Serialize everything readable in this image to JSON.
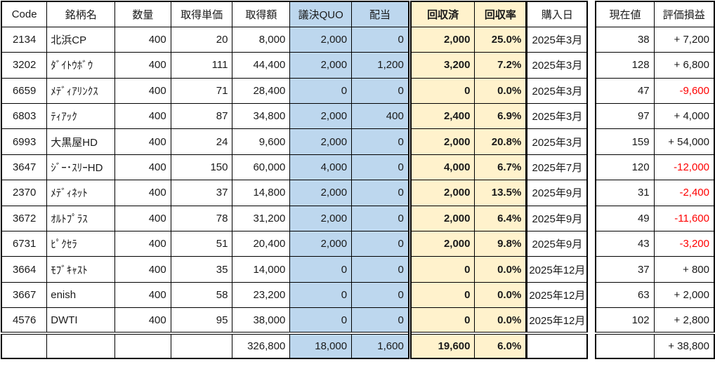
{
  "headers": {
    "code": "Code",
    "name": "銘柄名",
    "qty": "数量",
    "unit_price": "取得単価",
    "acq_amount": "取得額",
    "quo": "議決QUO",
    "dividend": "配当",
    "recovered": "回収済",
    "rate": "回収率",
    "purchase_date": "購入日",
    "current_price": "現在値",
    "pnl": "評価損益"
  },
  "rows": [
    {
      "code": "2134",
      "name": "北浜CP",
      "qty": "400",
      "unit_price": "20",
      "acq_amount": "8,000",
      "quo": "2,000",
      "dividend": "0",
      "recovered": "2,000",
      "rate": "25.0%",
      "purchase_date": "2025年3月",
      "current_price": "38",
      "pnl": "+ 7,200"
    },
    {
      "code": "3202",
      "name": "ﾀﾞｲﾄｳﾎﾞｳ",
      "qty": "400",
      "unit_price": "111",
      "acq_amount": "44,400",
      "quo": "2,000",
      "dividend": "1,200",
      "recovered": "3,200",
      "rate": "7.2%",
      "purchase_date": "2025年3月",
      "current_price": "128",
      "pnl": "+ 6,800"
    },
    {
      "code": "6659",
      "name": "ﾒﾃﾞｨｱﾘﾝｸｽ",
      "qty": "400",
      "unit_price": "71",
      "acq_amount": "28,400",
      "quo": "0",
      "dividend": "0",
      "recovered": "0",
      "rate": "0.0%",
      "purchase_date": "2025年3月",
      "current_price": "47",
      "pnl": "-9,600"
    },
    {
      "code": "6803",
      "name": "ﾃｨｱｯｸ",
      "qty": "400",
      "unit_price": "87",
      "acq_amount": "34,800",
      "quo": "2,000",
      "dividend": "400",
      "recovered": "2,400",
      "rate": "6.9%",
      "purchase_date": "2025年3月",
      "current_price": "97",
      "pnl": "+ 4,000"
    },
    {
      "code": "6993",
      "name": "大黒屋HD",
      "qty": "400",
      "unit_price": "24",
      "acq_amount": "9,600",
      "quo": "2,000",
      "dividend": "0",
      "recovered": "2,000",
      "rate": "20.8%",
      "purchase_date": "2025年3月",
      "current_price": "159",
      "pnl": "+ 54,000"
    },
    {
      "code": "3647",
      "name": "ｼﾞｰ･ｽﾘｰHD",
      "qty": "400",
      "unit_price": "150",
      "acq_amount": "60,000",
      "quo": "4,000",
      "dividend": "0",
      "recovered": "4,000",
      "rate": "6.7%",
      "purchase_date": "2025年7月",
      "current_price": "120",
      "pnl": "-12,000"
    },
    {
      "code": "2370",
      "name": "ﾒﾃﾞｨﾈｯﾄ",
      "qty": "400",
      "unit_price": "37",
      "acq_amount": "14,800",
      "quo": "2,000",
      "dividend": "0",
      "recovered": "2,000",
      "rate": "13.5%",
      "purchase_date": "2025年9月",
      "current_price": "31",
      "pnl": "-2,400"
    },
    {
      "code": "3672",
      "name": "ｵﾙﾄﾌﾟﾗｽ",
      "qty": "400",
      "unit_price": "78",
      "acq_amount": "31,200",
      "quo": "2,000",
      "dividend": "0",
      "recovered": "2,000",
      "rate": "6.4%",
      "purchase_date": "2025年9月",
      "current_price": "49",
      "pnl": "-11,600"
    },
    {
      "code": "6731",
      "name": "ﾋﾟｸｾﾗ",
      "qty": "400",
      "unit_price": "51",
      "acq_amount": "20,400",
      "quo": "2,000",
      "dividend": "0",
      "recovered": "2,000",
      "rate": "9.8%",
      "purchase_date": "2025年9月",
      "current_price": "43",
      "pnl": "-3,200"
    },
    {
      "code": "3664",
      "name": "ﾓﾌﾞｷｬｽﾄ",
      "qty": "400",
      "unit_price": "35",
      "acq_amount": "14,000",
      "quo": "0",
      "dividend": "0",
      "recovered": "0",
      "rate": "0.0%",
      "purchase_date": "2025年12月",
      "current_price": "37",
      "pnl": "+ 800"
    },
    {
      "code": "3667",
      "name": "enish",
      "qty": "400",
      "unit_price": "58",
      "acq_amount": "23,200",
      "quo": "0",
      "dividend": "0",
      "recovered": "0",
      "rate": "0.0%",
      "purchase_date": "2025年12月",
      "current_price": "63",
      "pnl": "+ 2,000"
    },
    {
      "code": "4576",
      "name": "DWTI",
      "qty": "400",
      "unit_price": "95",
      "acq_amount": "38,000",
      "quo": "0",
      "dividend": "0",
      "recovered": "0",
      "rate": "0.0%",
      "purchase_date": "2025年12月",
      "current_price": "102",
      "pnl": "+ 2,800"
    }
  ],
  "totals": {
    "acq_amount": "326,800",
    "quo": "18,000",
    "dividend": "1,600",
    "recovered": "19,600",
    "rate": "6.0%",
    "pnl": "+ 38,800"
  },
  "colors": {
    "highlight_blue": "#BDD7EE",
    "highlight_yellow": "#FFF2CC",
    "negative_red": "#FF0000",
    "border_black": "#000000"
  }
}
